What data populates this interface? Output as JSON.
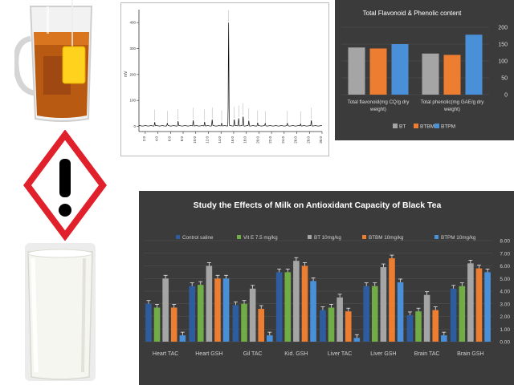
{
  "images": {
    "tea": "tea-glass-with-teabag",
    "hazard": "exclamation-hazard-pictogram",
    "milk": "glass-of-milk"
  },
  "colors": {
    "chart_bg": "#3b3b3b",
    "gray": "#a5a5a5",
    "orange": "#ed7d31",
    "blue": "#4a90d9",
    "green": "#70ad47",
    "darkblue": "#2e5d9f",
    "hazard_red": "#e0202a"
  },
  "chart_data": [
    {
      "type": "line",
      "title": "",
      "xlabel": "",
      "ylabel": "mV",
      "x_ticks": [
        "2.0",
        "4.0",
        "6.0",
        "8.0",
        "10.0",
        "12.0",
        "14.0",
        "16.0",
        "18.0",
        "20.0",
        "22.0",
        "24.0",
        "26.0",
        "28.0",
        "30.0"
      ],
      "y_ticks": [
        "0",
        "100",
        "200",
        "300",
        "400"
      ],
      "xlim": [
        1,
        30
      ],
      "ylim": [
        -20,
        450
      ],
      "peaks": [
        {
          "x": 3.5,
          "y": 15
        },
        {
          "x": 5.5,
          "y": 10
        },
        {
          "x": 7.2,
          "y": 18
        },
        {
          "x": 9.6,
          "y": 22
        },
        {
          "x": 11.4,
          "y": 16
        },
        {
          "x": 12.6,
          "y": 24
        },
        {
          "x": 14.1,
          "y": 12
        },
        {
          "x": 15.2,
          "y": 398
        },
        {
          "x": 16.1,
          "y": 26
        },
        {
          "x": 16.8,
          "y": 30
        },
        {
          "x": 17.5,
          "y": 38
        },
        {
          "x": 18.4,
          "y": 20
        },
        {
          "x": 19.8,
          "y": 12
        },
        {
          "x": 21.0,
          "y": 9
        },
        {
          "x": 24.5,
          "y": 10
        },
        {
          "x": 26.6,
          "y": 8
        },
        {
          "x": 28.3,
          "y": 22
        }
      ]
    },
    {
      "type": "bar",
      "title": "Total Flavonoid & Phenolic content",
      "categories": [
        "Total flavonoid(mg CQ/g dry weight)",
        "Total phenolic(mg GAE/g dry weight)"
      ],
      "series": [
        {
          "name": "BT",
          "color": "#a5a5a5",
          "values": [
            140,
            122
          ]
        },
        {
          "name": "BTBM",
          "color": "#ed7d31",
          "values": [
            137,
            118
          ]
        },
        {
          "name": "BTPM",
          "color": "#4a90d9",
          "values": [
            150,
            178
          ]
        }
      ],
      "ylim": [
        0,
        200
      ],
      "y_ticks": [
        "0",
        "50",
        "100",
        "150",
        "200"
      ],
      "legend": "bottom"
    },
    {
      "type": "bar",
      "title": "Study the Effects of Milk on Antioxidant Capacity of Black Tea",
      "categories": [
        "Heart TAC",
        "Heart GSH",
        "Gil TAC",
        "Kid. GSH",
        "Liver TAC",
        "Liver GSH",
        "Brain TAC",
        "Brain GSH"
      ],
      "series": [
        {
          "name": "Control saline",
          "color": "#2e5d9f",
          "values": [
            3.0,
            4.4,
            2.9,
            5.5,
            2.5,
            4.4,
            2.1,
            4.2
          ]
        },
        {
          "name": "Vit E 7.5 mg/kg",
          "color": "#70ad47",
          "values": [
            2.7,
            4.5,
            3.0,
            5.5,
            2.7,
            4.4,
            2.4,
            4.4
          ]
        },
        {
          "name": "BT 10mg/kg",
          "color": "#a5a5a5",
          "values": [
            5.0,
            6.0,
            4.2,
            6.4,
            3.5,
            5.9,
            3.7,
            6.2
          ]
        },
        {
          "name": "BTBM 10mg/kg",
          "color": "#ed7d31",
          "values": [
            2.7,
            5.0,
            2.6,
            6.0,
            2.4,
            6.6,
            2.5,
            5.8
          ]
        },
        {
          "name": "BTPM 10mg/kg",
          "color": "#4a90d9",
          "values": [
            0.5,
            5.0,
            0.5,
            4.8,
            0.3,
            4.7,
            0.5,
            5.5
          ]
        }
      ],
      "ylim": [
        0,
        8
      ],
      "y_ticks": [
        "0.00",
        "1.00",
        "2.00",
        "3.00",
        "4.00",
        "5.00",
        "6.00",
        "7.00",
        "8.00"
      ],
      "legend": "top"
    }
  ]
}
